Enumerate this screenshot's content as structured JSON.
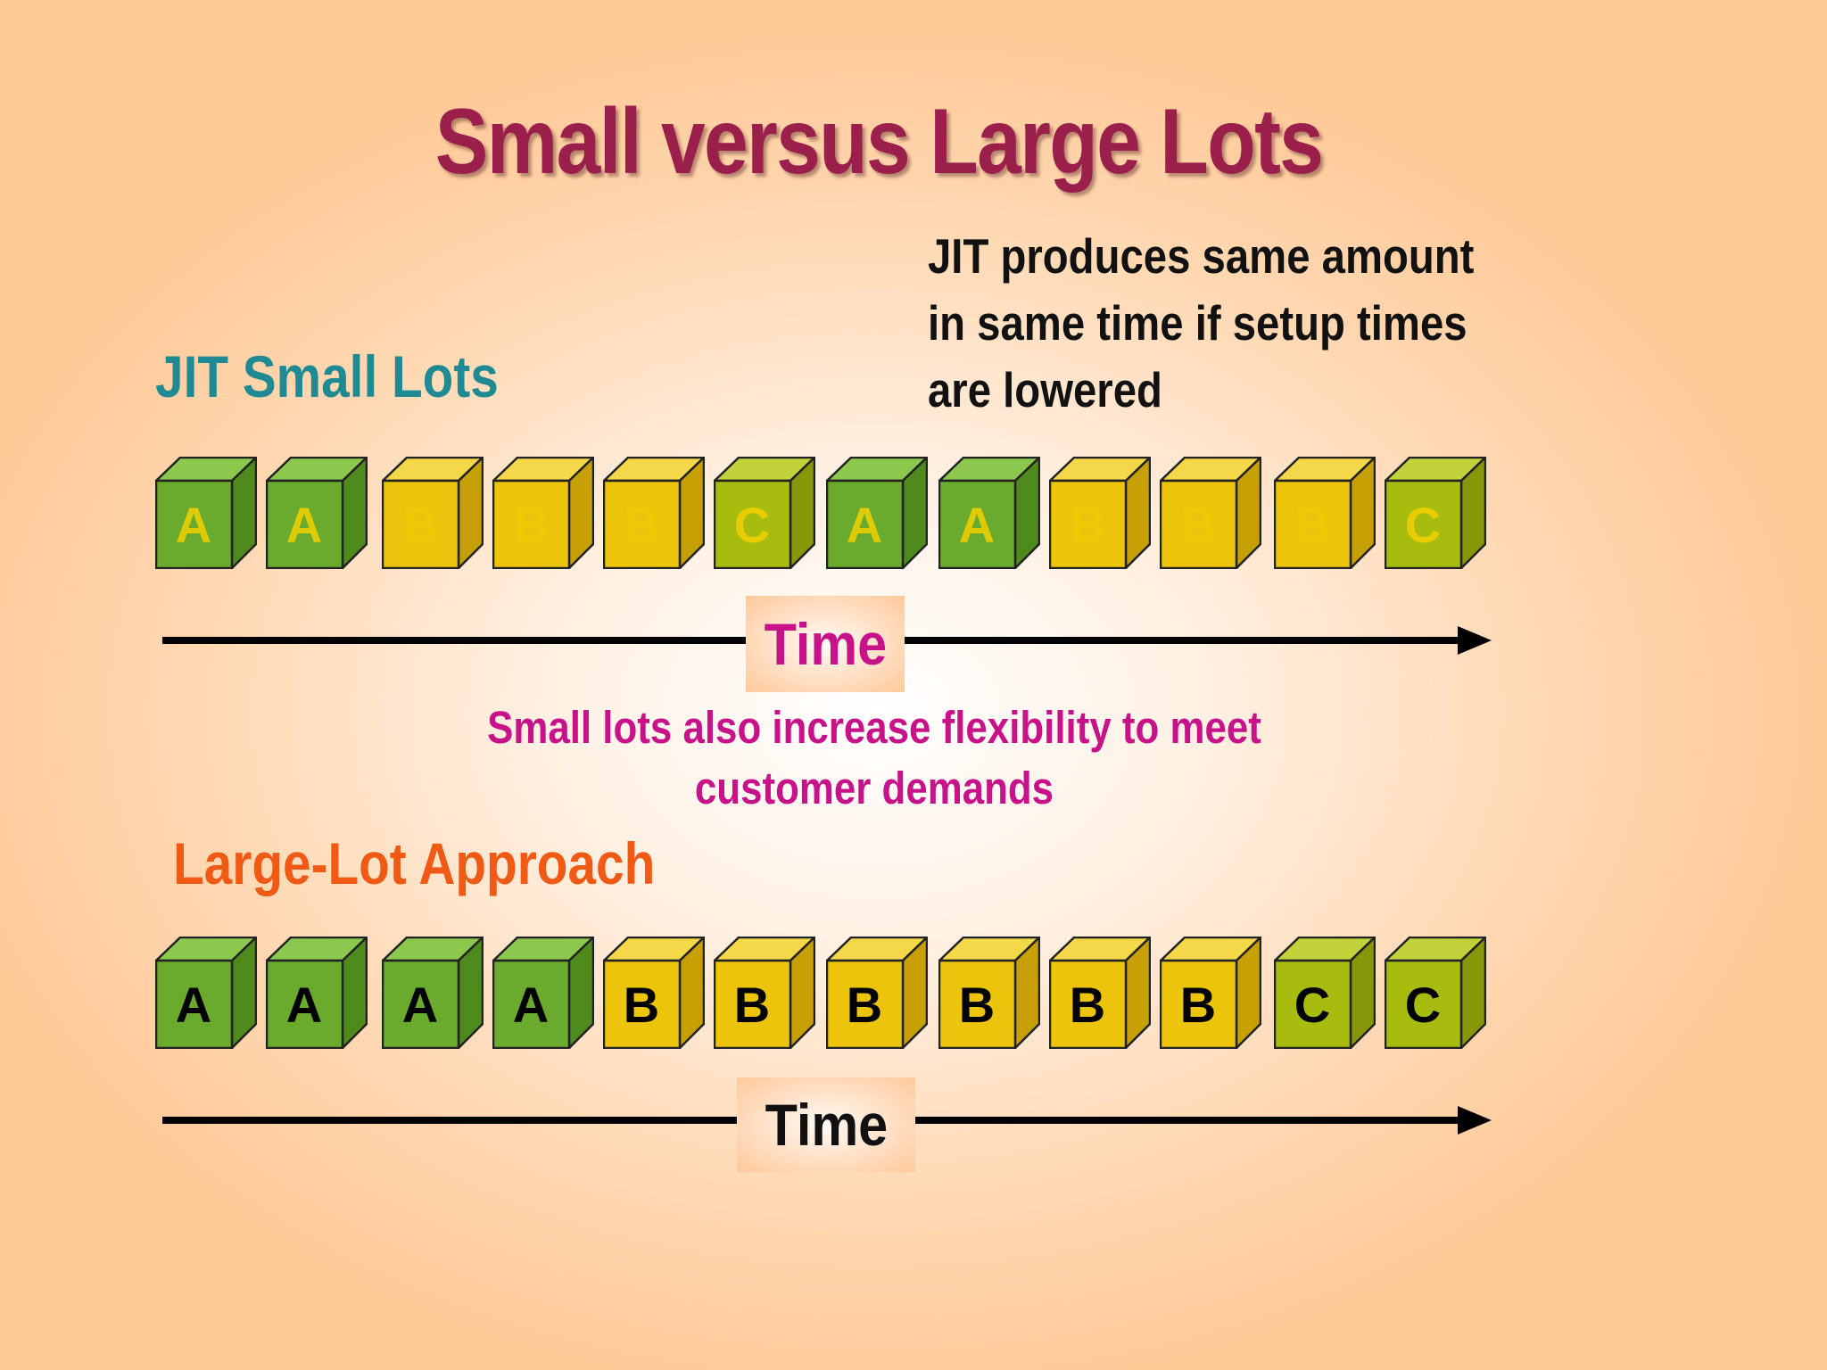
{
  "title": "Small versus Large Lots",
  "note": {
    "lines": [
      "JIT produces same amount",
      "in same time if setup times",
      "are lowered"
    ]
  },
  "jit_section": {
    "label": "JIT Small Lots",
    "cubes": [
      "A",
      "A",
      "B",
      "B",
      "B",
      "C",
      "A",
      "A",
      "B",
      "B",
      "B",
      "C"
    ],
    "time_label": "Time"
  },
  "flexibility_note": {
    "lines": [
      "Small lots also increase flexibility to meet",
      "customer demands"
    ]
  },
  "large_section": {
    "label": "Large-Lot Approach",
    "cubes": [
      "A",
      "A",
      "A",
      "A",
      "B",
      "B",
      "B",
      "B",
      "B",
      "B",
      "C",
      "C"
    ],
    "time_label": "Time"
  },
  "colors": {
    "title": "#9b1f4b",
    "jit_label": "#1f8a93",
    "large_label": "#f05a14",
    "highlight_text": "#c8128a",
    "cube_A": "#6aaa2c",
    "cube_B": "#ecc40c",
    "cube_C": "#a8bc10"
  }
}
